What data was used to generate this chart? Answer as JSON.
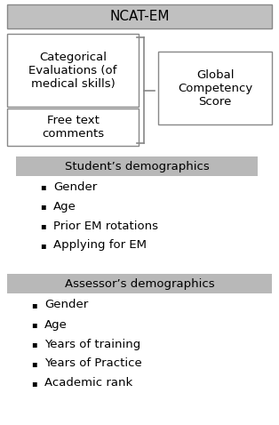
{
  "title": "NCAT-EM",
  "title_bg": "#c0c0c0",
  "box1_text": "Categorical\nEvaluations (of\nmedical skills)",
  "box2_text": "Free text\ncomments",
  "box3_text": "Global\nCompetency\nScore",
  "section1_label": "Student’s demographics",
  "section1_items": [
    "Gender",
    "Age",
    "Prior EM rotations",
    "Applying for EM"
  ],
  "section2_label": "Assessor’s demographics",
  "section2_items": [
    "Gender",
    "Age",
    "Years of training",
    "Years of Practice",
    "Academic rank"
  ],
  "section_bg": "#b8b8b8",
  "box_outline": "#888888",
  "bg_color": "#ffffff",
  "text_color": "#000000",
  "figsize": [
    3.14,
    4.78
  ],
  "dpi": 100
}
